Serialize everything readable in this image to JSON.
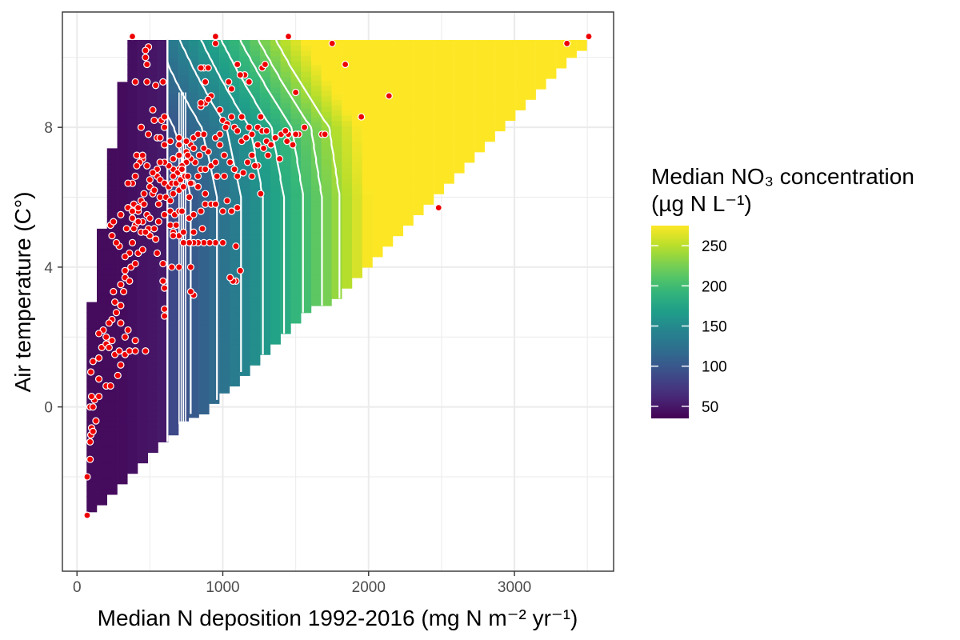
{
  "chart_data": {
    "type": "heatmap",
    "title": "",
    "xlabel": "Median N deposition 1992-2016 (mg N m⁻² yr⁻¹)",
    "ylabel": "Air temperature (C°)",
    "xlim": [
      -100,
      3680
    ],
    "ylim": [
      -4.7,
      11.3
    ],
    "x_ticks": [
      0,
      1000,
      2000,
      3000
    ],
    "x_tick_labels": [
      "0",
      "1000",
      "2000",
      "3000"
    ],
    "y_ticks": [
      0,
      4,
      8
    ],
    "y_tick_labels": [
      "0",
      "4",
      "8"
    ],
    "grid": true,
    "legend": {
      "title_line1": "Median NO₃ concentration",
      "title_line2": "(µg N L⁻¹)",
      "placement": "right",
      "min": 35,
      "max": 275,
      "breaks": [
        50,
        100,
        150,
        200,
        250
      ],
      "break_labels": [
        "50",
        "100",
        "150",
        "200",
        "250"
      ],
      "colormap": "viridis"
    },
    "surface": {
      "bin_width": 68,
      "columns": [
        {
          "x": 100,
          "ymin": -3.0,
          "ymax": 3.0
        },
        {
          "x": 170,
          "ymin": -2.8,
          "ymax": 5.1
        },
        {
          "x": 240,
          "ymin": -2.5,
          "ymax": 7.4
        },
        {
          "x": 310,
          "ymin": -2.2,
          "ymax": 9.3
        },
        {
          "x": 380,
          "ymin": -1.9,
          "ymax": 10.5
        },
        {
          "x": 450,
          "ymin": -1.6,
          "ymax": 10.5
        },
        {
          "x": 520,
          "ymin": -1.3,
          "ymax": 10.5
        },
        {
          "x": 590,
          "ymin": -1.0,
          "ymax": 10.5
        },
        {
          "x": 660,
          "ymin": -0.8,
          "ymax": 10.5
        },
        {
          "x": 730,
          "ymin": -0.4,
          "ymax": 10.5
        },
        {
          "x": 800,
          "ymin": -0.3,
          "ymax": 10.5
        },
        {
          "x": 870,
          "ymin": -0.2,
          "ymax": 10.5
        },
        {
          "x": 940,
          "ymin": 0.1,
          "ymax": 10.5
        },
        {
          "x": 1010,
          "ymin": 0.4,
          "ymax": 10.5
        },
        {
          "x": 1080,
          "ymin": 0.6,
          "ymax": 10.5
        },
        {
          "x": 1150,
          "ymin": 0.9,
          "ymax": 10.5
        },
        {
          "x": 1220,
          "ymin": 1.2,
          "ymax": 10.5
        },
        {
          "x": 1290,
          "ymin": 1.5,
          "ymax": 10.5
        },
        {
          "x": 1360,
          "ymin": 1.8,
          "ymax": 10.5
        },
        {
          "x": 1430,
          "ymin": 2.1,
          "ymax": 10.5
        },
        {
          "x": 1500,
          "ymin": 2.4,
          "ymax": 10.5
        },
        {
          "x": 1570,
          "ymin": 2.7,
          "ymax": 10.5
        },
        {
          "x": 1640,
          "ymin": 2.9,
          "ymax": 10.5
        },
        {
          "x": 1710,
          "ymin": 2.9,
          "ymax": 10.5
        },
        {
          "x": 1780,
          "ymin": 3.1,
          "ymax": 10.5
        },
        {
          "x": 1850,
          "ymin": 3.4,
          "ymax": 10.5
        },
        {
          "x": 1920,
          "ymin": 3.7,
          "ymax": 10.5
        },
        {
          "x": 1990,
          "ymin": 4.0,
          "ymax": 10.5
        },
        {
          "x": 2060,
          "ymin": 4.3,
          "ymax": 10.5
        },
        {
          "x": 2130,
          "ymin": 4.6,
          "ymax": 10.5
        },
        {
          "x": 2200,
          "ymin": 4.9,
          "ymax": 10.5
        },
        {
          "x": 2270,
          "ymin": 5.2,
          "ymax": 10.5
        },
        {
          "x": 2340,
          "ymin": 5.5,
          "ymax": 10.5
        },
        {
          "x": 2410,
          "ymin": 5.8,
          "ymax": 10.5
        },
        {
          "x": 2480,
          "ymin": 6.1,
          "ymax": 10.5
        },
        {
          "x": 2550,
          "ymin": 6.4,
          "ymax": 10.5
        },
        {
          "x": 2620,
          "ymin": 6.7,
          "ymax": 10.5
        },
        {
          "x": 2690,
          "ymin": 7.0,
          "ymax": 10.5
        },
        {
          "x": 2760,
          "ymin": 7.3,
          "ymax": 10.5
        },
        {
          "x": 2830,
          "ymin": 7.6,
          "ymax": 10.5
        },
        {
          "x": 2900,
          "ymin": 7.9,
          "ymax": 10.5
        },
        {
          "x": 2970,
          "ymin": 8.2,
          "ymax": 10.5
        },
        {
          "x": 3040,
          "ymin": 8.5,
          "ymax": 10.5
        },
        {
          "x": 3110,
          "ymin": 8.8,
          "ymax": 10.5
        },
        {
          "x": 3180,
          "ymin": 9.1,
          "ymax": 10.5
        },
        {
          "x": 3250,
          "ymin": 9.4,
          "ymax": 10.5
        },
        {
          "x": 3320,
          "ymin": 9.7,
          "ymax": 10.5
        },
        {
          "x": 3390,
          "ymin": 10.0,
          "ymax": 10.5
        },
        {
          "x": 3460,
          "ymin": 10.2,
          "ymax": 10.5
        }
      ]
    },
    "contour_levels": [
      60,
      80,
      100,
      120,
      140,
      160,
      180,
      200,
      220,
      240
    ],
    "points": [
      [
        70,
        -3.1
      ],
      [
        70,
        -2.0
      ],
      [
        90,
        -1.5
      ],
      [
        90,
        -1.0
      ],
      [
        95,
        -0.8
      ],
      [
        100,
        -0.6
      ],
      [
        110,
        -0.7
      ],
      [
        90,
        0.0
      ],
      [
        110,
        0.0
      ],
      [
        120,
        0.2
      ],
      [
        130,
        -0.4
      ],
      [
        150,
        0.3
      ],
      [
        100,
        0.3
      ],
      [
        95,
        1.0
      ],
      [
        110,
        1.3
      ],
      [
        150,
        1.4
      ],
      [
        150,
        0.8
      ],
      [
        170,
        1.7
      ],
      [
        200,
        1.8
      ],
      [
        220,
        1.7
      ],
      [
        240,
        1.9
      ],
      [
        200,
        2.0
      ],
      [
        180,
        2.2
      ],
      [
        150,
        2.1
      ],
      [
        200,
        0.6
      ],
      [
        230,
        0.6
      ],
      [
        280,
        0.9
      ],
      [
        300,
        1.2
      ],
      [
        260,
        1.5
      ],
      [
        290,
        1.6
      ],
      [
        330,
        1.5
      ],
      [
        360,
        1.6
      ],
      [
        400,
        1.6
      ],
      [
        470,
        1.6
      ],
      [
        400,
        1.9
      ],
      [
        330,
        2.0
      ],
      [
        350,
        2.2
      ],
      [
        300,
        2.4
      ],
      [
        270,
        2.7
      ],
      [
        300,
        2.9
      ],
      [
        260,
        3.0
      ],
      [
        240,
        2.5
      ],
      [
        220,
        2.4
      ],
      [
        320,
        3.3
      ],
      [
        250,
        3.3
      ],
      [
        330,
        3.7
      ],
      [
        300,
        3.5
      ],
      [
        360,
        3.6
      ],
      [
        330,
        3.9
      ],
      [
        370,
        4.0
      ],
      [
        400,
        4.1
      ],
      [
        360,
        4.4
      ],
      [
        380,
        4.7
      ],
      [
        420,
        4.4
      ],
      [
        450,
        4.5
      ],
      [
        330,
        4.3
      ],
      [
        290,
        4.6
      ],
      [
        270,
        4.7
      ],
      [
        240,
        4.9
      ],
      [
        230,
        5.2
      ],
      [
        250,
        5.3
      ],
      [
        300,
        5.5
      ],
      [
        350,
        5.7
      ],
      [
        390,
        5.8
      ],
      [
        440,
        5.9
      ],
      [
        460,
        5.8
      ],
      [
        480,
        5.5
      ],
      [
        500,
        5.4
      ],
      [
        420,
        5.6
      ],
      [
        380,
        5.4
      ],
      [
        340,
        5.1
      ],
      [
        400,
        5.2
      ],
      [
        440,
        5.0
      ],
      [
        490,
        5.1
      ],
      [
        530,
        5.1
      ],
      [
        560,
        5.3
      ],
      [
        600,
        5.5
      ],
      [
        640,
        5.6
      ],
      [
        670,
        5.5
      ],
      [
        700,
        5.6
      ],
      [
        720,
        5.6
      ],
      [
        560,
        5.8
      ],
      [
        520,
        6.1
      ],
      [
        500,
        6.5
      ],
      [
        550,
        6.6
      ],
      [
        570,
        6.5
      ],
      [
        600,
        6.4
      ],
      [
        630,
        6.3
      ],
      [
        650,
        6.4
      ],
      [
        680,
        6.4
      ],
      [
        710,
        6.5
      ],
      [
        740,
        6.6
      ],
      [
        760,
        6.6
      ],
      [
        790,
        6.4
      ],
      [
        830,
        6.6
      ],
      [
        850,
        6.8
      ],
      [
        880,
        6.8
      ],
      [
        920,
        6.9
      ],
      [
        950,
        7.0
      ],
      [
        900,
        7.3
      ],
      [
        870,
        7.4
      ],
      [
        840,
        7.2
      ],
      [
        810,
        7.0
      ],
      [
        780,
        7.1
      ],
      [
        750,
        7.0
      ],
      [
        720,
        6.9
      ],
      [
        700,
        6.8
      ],
      [
        660,
        6.8
      ],
      [
        630,
        6.9
      ],
      [
        600,
        7.0
      ],
      [
        570,
        7.0
      ],
      [
        550,
        6.8
      ],
      [
        520,
        6.7
      ],
      [
        480,
        6.9
      ],
      [
        450,
        7.1
      ],
      [
        430,
        7.0
      ],
      [
        410,
        6.9
      ],
      [
        400,
        6.6
      ],
      [
        380,
        6.4
      ],
      [
        350,
        6.4
      ],
      [
        410,
        7.2
      ],
      [
        450,
        7.2
      ],
      [
        600,
        7.5
      ],
      [
        640,
        7.6
      ],
      [
        700,
        7.5
      ],
      [
        750,
        7.3
      ],
      [
        780,
        7.5
      ],
      [
        800,
        7.7
      ],
      [
        830,
        7.8
      ],
      [
        870,
        7.8
      ],
      [
        950,
        7.7
      ],
      [
        980,
        7.5
      ],
      [
        1010,
        7.2
      ],
      [
        1050,
        7.0
      ],
      [
        1080,
        6.8
      ],
      [
        1010,
        6.6
      ],
      [
        960,
        6.6
      ],
      [
        1100,
        6.6
      ],
      [
        1140,
        6.7
      ],
      [
        1170,
        7.0
      ],
      [
        1200,
        7.2
      ],
      [
        1240,
        7.5
      ],
      [
        1280,
        7.4
      ],
      [
        1300,
        7.6
      ],
      [
        1330,
        7.5
      ],
      [
        1360,
        7.7
      ],
      [
        1400,
        7.8
      ],
      [
        1440,
        7.6
      ],
      [
        1480,
        7.5
      ],
      [
        1520,
        7.8
      ],
      [
        1450,
        7.8
      ],
      [
        1390,
        7.1
      ],
      [
        1310,
        7.2
      ],
      [
        1240,
        6.9
      ],
      [
        1200,
        6.6
      ],
      [
        1220,
        6.9
      ],
      [
        1260,
        6.1
      ],
      [
        1100,
        5.7
      ],
      [
        1060,
        5.6
      ],
      [
        1000,
        5.6
      ],
      [
        1030,
        5.9
      ],
      [
        1000,
        4.7
      ],
      [
        950,
        4.7
      ],
      [
        910,
        4.7
      ],
      [
        870,
        4.7
      ],
      [
        830,
        4.7
      ],
      [
        800,
        4.7
      ],
      [
        770,
        4.7
      ],
      [
        730,
        4.7
      ],
      [
        700,
        4.9
      ],
      [
        660,
        5.0
      ],
      [
        640,
        5.2
      ],
      [
        680,
        5.2
      ],
      [
        730,
        5.0
      ],
      [
        800,
        5.0
      ],
      [
        860,
        5.1
      ],
      [
        770,
        5.4
      ],
      [
        800,
        5.5
      ],
      [
        850,
        5.6
      ],
      [
        880,
        5.8
      ],
      [
        920,
        5.8
      ],
      [
        950,
        5.8
      ],
      [
        880,
        6.1
      ],
      [
        830,
        6.3
      ],
      [
        780,
        6.4
      ],
      [
        1090,
        4.6
      ],
      [
        1090,
        3.6
      ],
      [
        1070,
        3.6
      ],
      [
        1050,
        3.7
      ],
      [
        1120,
        3.9
      ],
      [
        600,
        2.6
      ],
      [
        600,
        2.8
      ],
      [
        590,
        3.6
      ],
      [
        600,
        3.4
      ],
      [
        650,
        4.0
      ],
      [
        700,
        4.0
      ],
      [
        780,
        4.0
      ],
      [
        800,
        3.2
      ],
      [
        780,
        3.3
      ],
      [
        660,
        4.9
      ],
      [
        590,
        4.1
      ],
      [
        550,
        4.4
      ],
      [
        540,
        4.8
      ],
      [
        500,
        4.9
      ],
      [
        470,
        5.0
      ],
      [
        450,
        5.3
      ],
      [
        420,
        5.3
      ],
      [
        390,
        5.1
      ],
      [
        380,
        5.6
      ],
      [
        420,
        5.7
      ],
      [
        460,
        6.1
      ],
      [
        500,
        6.3
      ],
      [
        530,
        6.2
      ],
      [
        570,
        6.0
      ],
      [
        610,
        6.0
      ],
      [
        640,
        5.9
      ],
      [
        660,
        6.1
      ],
      [
        700,
        6.2
      ],
      [
        730,
        6.3
      ],
      [
        770,
        6.0
      ],
      [
        550,
        7.7
      ],
      [
        570,
        7.7
      ],
      [
        600,
        8.0
      ],
      [
        580,
        8.2
      ],
      [
        530,
        8.2
      ],
      [
        600,
        8.3
      ],
      [
        520,
        8.5
      ],
      [
        490,
        7.8
      ],
      [
        440,
        8.0
      ],
      [
        480,
        9.3
      ],
      [
        540,
        9.2
      ],
      [
        590,
        9.3
      ],
      [
        480,
        9.8
      ],
      [
        470,
        10.0
      ],
      [
        490,
        10.3
      ],
      [
        470,
        10.2
      ],
      [
        400,
        9.3
      ],
      [
        380,
        10.6
      ],
      [
        850,
        8.6
      ],
      [
        880,
        8.7
      ],
      [
        920,
        8.9
      ],
      [
        980,
        8.5
      ],
      [
        1000,
        8.2
      ],
      [
        1030,
        8.1
      ],
      [
        1060,
        8.3
      ],
      [
        1080,
        8.0
      ],
      [
        1020,
        8.0
      ],
      [
        980,
        7.8
      ],
      [
        1100,
        7.9
      ],
      [
        1130,
        7.6
      ],
      [
        1160,
        7.7
      ],
      [
        1200,
        7.8
      ],
      [
        1240,
        8.0
      ],
      [
        1270,
        7.9
      ],
      [
        1300,
        7.9
      ],
      [
        1260,
        8.3
      ],
      [
        1180,
        8.0
      ],
      [
        1150,
        9.5
      ],
      [
        1120,
        9.5
      ],
      [
        1100,
        9.8
      ],
      [
        1040,
        9.3
      ],
      [
        1060,
        9.1
      ],
      [
        1130,
        8.3
      ],
      [
        1180,
        9.3
      ],
      [
        1270,
        9.7
      ],
      [
        1290,
        9.8
      ],
      [
        1430,
        7.9
      ],
      [
        1500,
        7.8
      ],
      [
        1560,
        8.0
      ],
      [
        1680,
        7.8
      ],
      [
        1700,
        7.8
      ],
      [
        1500,
        9.0
      ],
      [
        1750,
        10.4
      ],
      [
        1840,
        9.8
      ],
      [
        1950,
        8.3
      ],
      [
        2140,
        8.9
      ],
      [
        2480,
        5.7
      ],
      [
        3360,
        10.4
      ],
      [
        3510,
        10.6
      ],
      [
        1450,
        10.6
      ],
      [
        950,
        10.6
      ],
      [
        950,
        10.4
      ],
      [
        870,
        9.7
      ],
      [
        850,
        9.7
      ],
      [
        900,
        9.7
      ],
      [
        880,
        9.3
      ],
      [
        850,
        8.7
      ],
      [
        900,
        8.8
      ],
      [
        700,
        7.7
      ],
      [
        700,
        7.2
      ],
      [
        660,
        7.1
      ],
      [
        690,
        6.7
      ],
      [
        660,
        6.6
      ],
      [
        720,
        6.8
      ],
      [
        760,
        7.2
      ],
      [
        750,
        7.6
      ],
      [
        800,
        7.4
      ]
    ]
  }
}
